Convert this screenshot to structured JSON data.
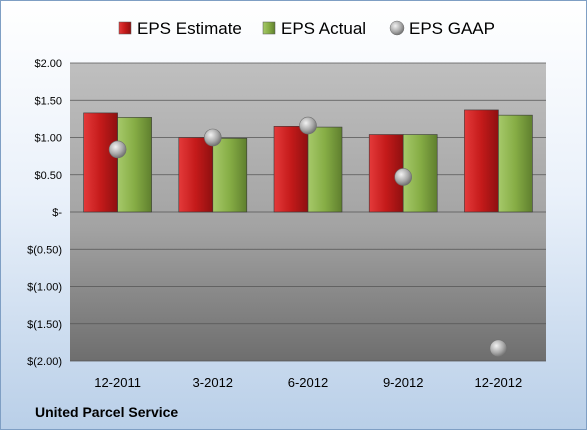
{
  "chart_data": {
    "type": "bar",
    "title": "",
    "xlabel": "",
    "ylabel": "",
    "categories": [
      "12-2011",
      "3-2012",
      "6-2012",
      "9-2012",
      "12-2012"
    ],
    "series": [
      {
        "name": "EPS Estimate",
        "kind": "bar",
        "color": "#c91d1d",
        "values": [
          1.33,
          1.0,
          1.15,
          1.04,
          1.37
        ]
      },
      {
        "name": "EPS Actual",
        "kind": "bar",
        "color": "#8ab04b",
        "values": [
          1.27,
          0.99,
          1.14,
          1.04,
          1.3
        ]
      },
      {
        "name": "EPS GAAP",
        "kind": "marker",
        "color": "#a6a6a6",
        "values": [
          0.84,
          1.0,
          1.16,
          0.47,
          -1.83
        ]
      }
    ],
    "ylim": [
      -2.0,
      2.0
    ],
    "yticks": [
      2.0,
      1.5,
      1.0,
      0.5,
      0.0,
      -0.5,
      -1.0,
      -1.5,
      -2.0
    ],
    "ytick_labels": [
      "$2.00",
      "$1.50",
      "$1.00",
      "$0.50",
      "$-",
      "$(0.50)",
      "$(1.00)",
      "$(1.50)",
      "$(2.00)"
    ],
    "grid": true,
    "legend_position": "top"
  },
  "company_name": "United Parcel Service"
}
